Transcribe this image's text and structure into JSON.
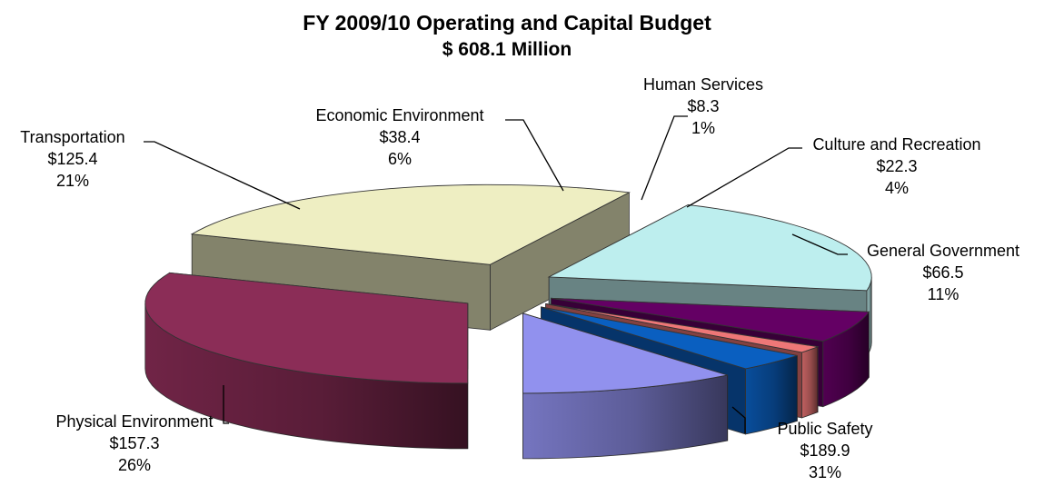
{
  "chart_data": {
    "type": "pie",
    "title": "FY 2009/10 Operating and Capital Budget",
    "subtitle": "$ 608.1 Million",
    "slices": [
      {
        "name": "Public Safety",
        "value": 189.9,
        "value_label": "$189.9",
        "percent_label": "31%",
        "color": "#8b2d57"
      },
      {
        "name": "Physical Environment",
        "value": 157.3,
        "value_label": "$157.3",
        "percent_label": "26%",
        "color": "#eeeec2"
      },
      {
        "name": "Transportation",
        "value": 125.4,
        "value_label": "$125.4",
        "percent_label": "21%",
        "color": "#bdeeee"
      },
      {
        "name": "Economic Environment",
        "value": 38.4,
        "value_label": "$38.4",
        "percent_label": "6%",
        "color": "#640064"
      },
      {
        "name": "Human Services",
        "value": 8.3,
        "value_label": "$8.3",
        "percent_label": "1%",
        "color": "#ee7777"
      },
      {
        "name": "Culture and Recreation",
        "value": 22.3,
        "value_label": "$22.3",
        "percent_label": "4%",
        "color": "#0a5fc0"
      },
      {
        "name": "General Government",
        "value": 66.5,
        "value_label": "$66.5",
        "percent_label": "11%",
        "color": "#9191ee"
      }
    ]
  }
}
